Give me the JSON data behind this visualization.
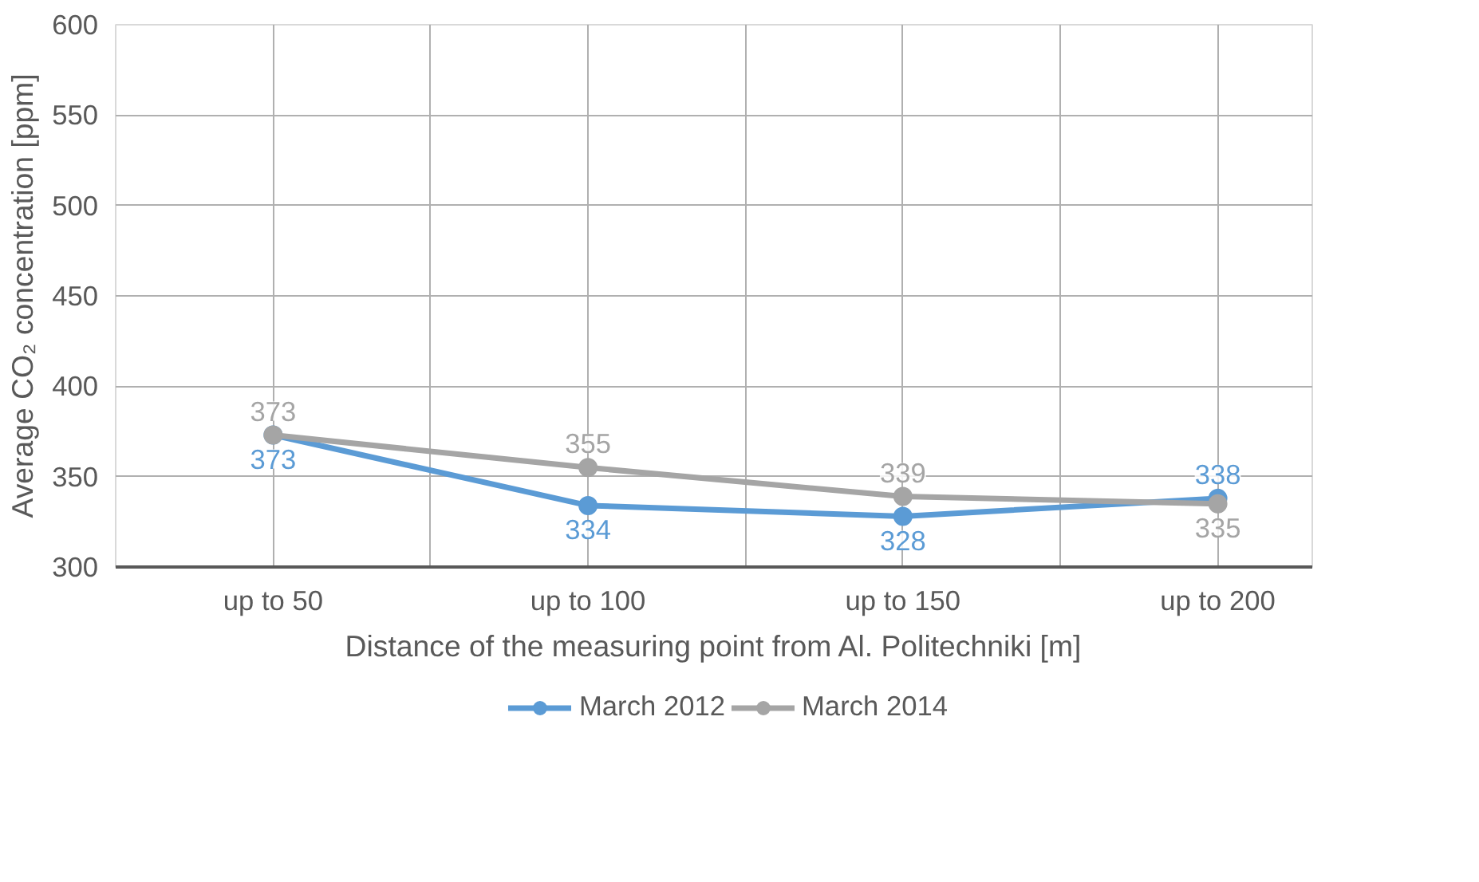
{
  "chart_data": {
    "type": "line",
    "xlabel": "Distance of the measuring point from Al. Politechniki [m]",
    "ylabel": "Average CO₂ concentration [ppm]",
    "categories": [
      "up to 50",
      "up to 100",
      "up to 150",
      "up to 200"
    ],
    "series": [
      {
        "name": "March 2012",
        "color": "#5b9bd5",
        "values": [
          373,
          334,
          328,
          338
        ]
      },
      {
        "name": "March 2014",
        "color": "#a5a5a5",
        "values": [
          373,
          355,
          339,
          335
        ]
      }
    ],
    "ylim": [
      300,
      600
    ],
    "yticks": [
      300,
      350,
      400,
      450,
      500,
      550,
      600
    ],
    "grid": true,
    "legend": "bottom",
    "marker": "circle",
    "line_style": "solid",
    "data_labels": true
  }
}
